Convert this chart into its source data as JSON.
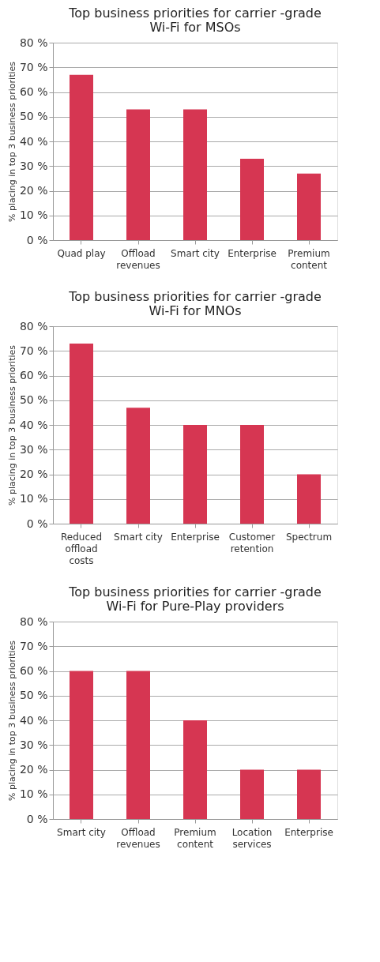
{
  "chart_data": [
    {
      "type": "bar",
      "title": "Top business priorities for carrier -grade Wi-Fi for MSOs",
      "ylabel": "% placing in top 3 business priorities",
      "categories": [
        "Quad play",
        "Offload revenues",
        "Smart city",
        "Enterprise",
        "Premium content"
      ],
      "values": [
        67,
        53,
        53,
        33,
        27
      ],
      "color": "#d63652",
      "ylim": [
        0,
        80
      ],
      "yticks": [
        {
          "value": 0,
          "label": "0 %"
        },
        {
          "value": 10,
          "label": "10 %"
        },
        {
          "value": 20,
          "label": "20 %"
        },
        {
          "value": 30,
          "label": "30 %"
        },
        {
          "value": 40,
          "label": "40 %"
        },
        {
          "value": 50,
          "label": "50 %"
        },
        {
          "value": 60,
          "label": "60 %"
        },
        {
          "value": 70,
          "label": "70 %"
        },
        {
          "value": 80,
          "label": "80 %"
        }
      ],
      "grid": "y"
    },
    {
      "type": "bar",
      "title": "Top business priorities for carrier -grade Wi-Fi for MNOs",
      "ylabel": "% placing in top 3 business priorities",
      "categories": [
        "Reduced offload costs",
        "Smart city",
        "Enterprise",
        "Customer retention",
        "Spectrum"
      ],
      "values": [
        73,
        47,
        40,
        40,
        20
      ],
      "color": "#d63652",
      "ylim": [
        0,
        80
      ],
      "yticks": [
        {
          "value": 0,
          "label": "0 %"
        },
        {
          "value": 10,
          "label": "10 %"
        },
        {
          "value": 20,
          "label": "20 %"
        },
        {
          "value": 30,
          "label": "30 %"
        },
        {
          "value": 40,
          "label": "40 %"
        },
        {
          "value": 50,
          "label": "50 %"
        },
        {
          "value": 60,
          "label": "60 %"
        },
        {
          "value": 70,
          "label": "70 %"
        },
        {
          "value": 80,
          "label": "80 %"
        }
      ],
      "grid": "y"
    },
    {
      "type": "bar",
      "title": "Top business priorities for carrier -grade Wi-Fi for Pure-Play providers",
      "ylabel": "% placing in top 3 business priorities",
      "categories": [
        "Smart city",
        "Offload revenues",
        "Premium content",
        "Location services",
        "Enterprise"
      ],
      "values": [
        60,
        60,
        40,
        20,
        20
      ],
      "color": "#d63652",
      "ylim": [
        0,
        80
      ],
      "yticks": [
        {
          "value": 0,
          "label": "0 %"
        },
        {
          "value": 10,
          "label": "10 %"
        },
        {
          "value": 20,
          "label": "20 %"
        },
        {
          "value": 30,
          "label": "30 %"
        },
        {
          "value": 40,
          "label": "40 %"
        },
        {
          "value": 50,
          "label": "50 %"
        },
        {
          "value": 60,
          "label": "60 %"
        },
        {
          "value": 70,
          "label": "70 %"
        },
        {
          "value": 80,
          "label": "80 %"
        }
      ],
      "grid": "y"
    }
  ]
}
